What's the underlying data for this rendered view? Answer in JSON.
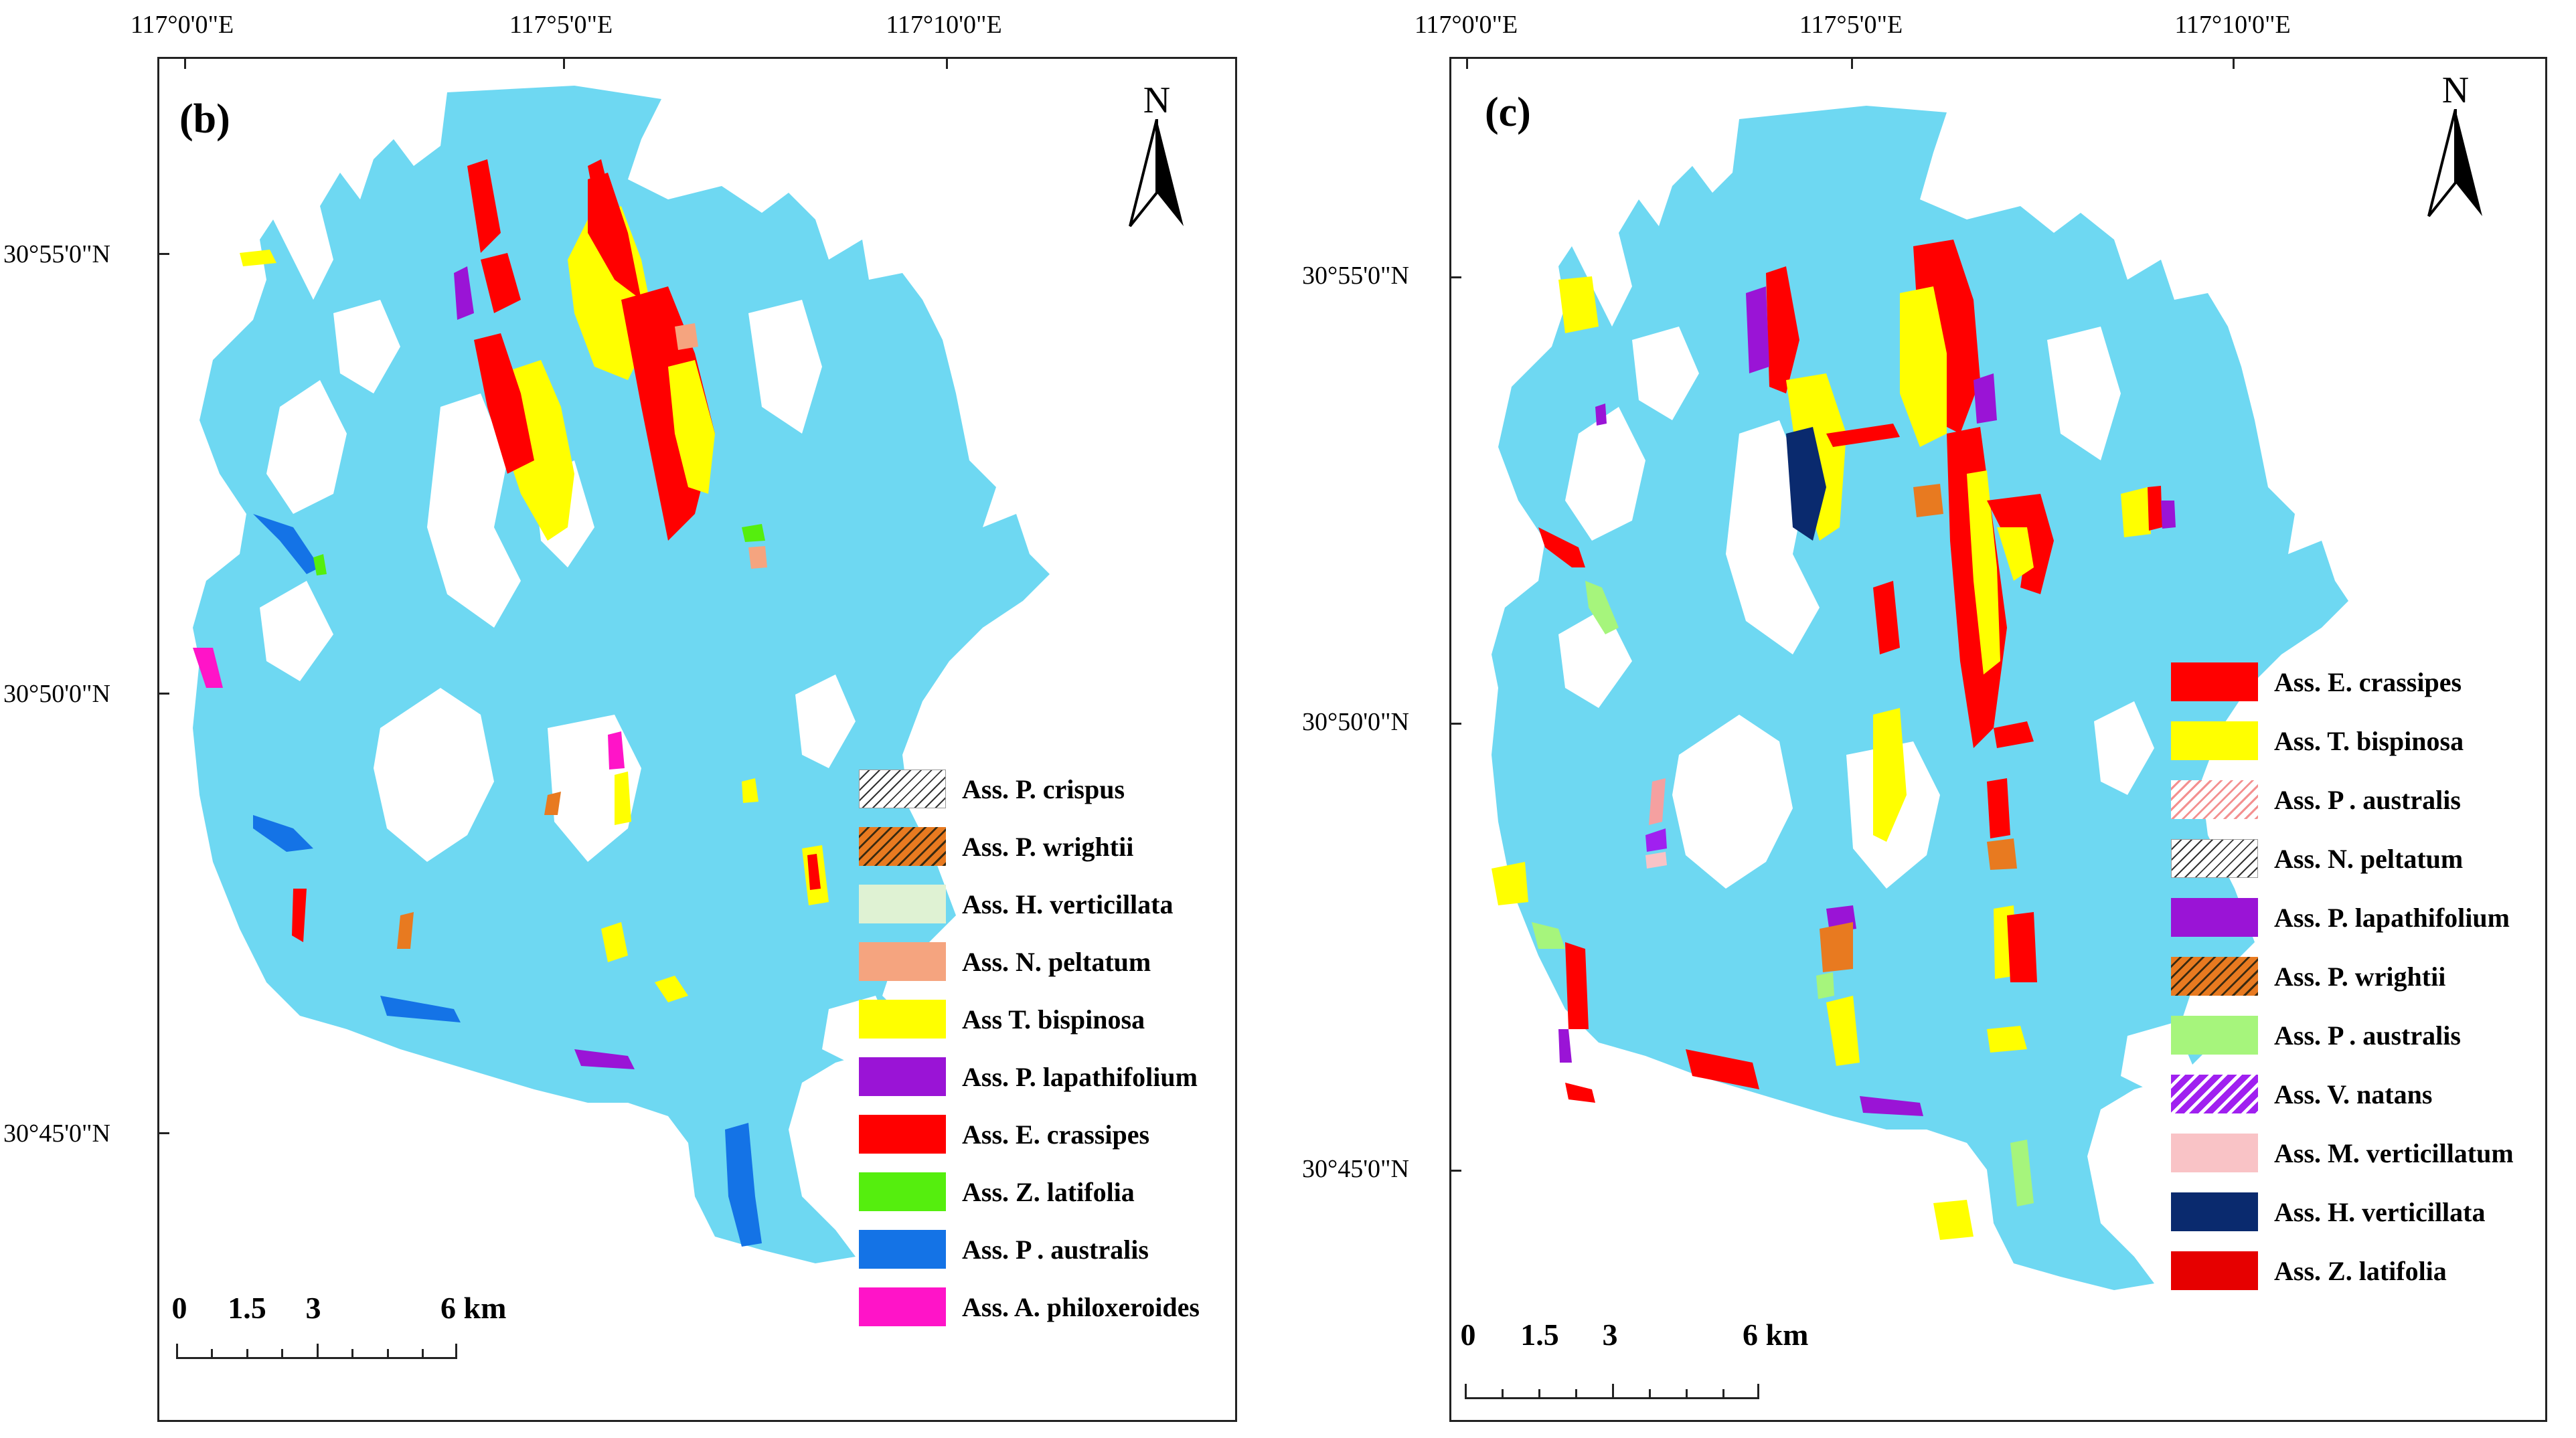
{
  "colors": {
    "water": "#6ed8f2",
    "land": "#ffffff"
  },
  "panels": [
    {
      "label": "(b)",
      "top_coords": [
        "117°0'0\"E",
        "117°5'0\"E",
        "117°10'0\"E"
      ],
      "left_coords": [
        "30°55'0\"N",
        "30°50'0\"N",
        "30°45'0\"N"
      ],
      "north": "N",
      "scale": {
        "ticks": [
          "0",
          "1.5",
          "3",
          "6 km"
        ]
      },
      "legend": [
        {
          "label": "Ass. P. crispus",
          "color": "#ffffff",
          "pattern": "hatch-black"
        },
        {
          "label": "Ass. P. wrightii",
          "color": "#e87a20",
          "pattern": "hatch-orange"
        },
        {
          "label": "Ass. H. verticillata",
          "color": "#dff2d3",
          "pattern": "solid"
        },
        {
          "label": "Ass. N. peltatum",
          "color": "#f5a47f",
          "pattern": "solid"
        },
        {
          "label": "Ass T. bispinosa",
          "color": "#ffff00",
          "pattern": "solid"
        },
        {
          "label": "Ass. P. lapathifolium",
          "color": "#9a14d6",
          "pattern": "solid"
        },
        {
          "label": "Ass. E. crassipes",
          "color": "#ff0000",
          "pattern": "solid"
        },
        {
          "label": "Ass. Z. latifolia",
          "color": "#55ee0e",
          "pattern": "solid"
        },
        {
          "label": "Ass. P . australis",
          "color": "#1473e6",
          "pattern": "solid"
        },
        {
          "label": "Ass. A.  philoxeroides",
          "color": "#ff14c8",
          "pattern": "solid"
        }
      ]
    },
    {
      "label": "(c)",
      "top_coords": [
        "117°0'0\"E",
        "117°5'0\"E",
        "117°10'0\"E"
      ],
      "left_coords": [
        "30°55'0\"N",
        "30°50'0\"N",
        "30°45'0\"N"
      ],
      "north": "N",
      "scale": {
        "ticks": [
          "0",
          "1.5",
          "3",
          "6 km"
        ]
      },
      "legend": [
        {
          "label": "Ass. E. crassipes",
          "color": "#ff0000",
          "pattern": "solid"
        },
        {
          "label": "Ass. T. bispinosa",
          "color": "#ffff00",
          "pattern": "solid"
        },
        {
          "label": "Ass. P . australis",
          "color": "#f5a0a0",
          "pattern": "hatch-pink"
        },
        {
          "label": "Ass. N. peltatum",
          "color": "#ffffff",
          "pattern": "hatch-black"
        },
        {
          "label": "Ass. P. lapathifolium",
          "color": "#9a14d6",
          "pattern": "solid"
        },
        {
          "label": "Ass. P. wrightii",
          "color": "#e87a20",
          "pattern": "hatch-orange"
        },
        {
          "label": "Ass. P . australis",
          "color": "#a6f57c",
          "pattern": "solid"
        },
        {
          "label": "Ass. V. natans",
          "color": "#a020f0",
          "pattern": "hatch-purple"
        },
        {
          "label": "Ass. M. verticillatum",
          "color": "#f9c3c6",
          "pattern": "solid"
        },
        {
          "label": "Ass. H. verticillata",
          "color": "#0a2a6e",
          "pattern": "solid"
        },
        {
          "label": "Ass. Z. latifolia",
          "color": "#e60000",
          "pattern": "solid"
        }
      ]
    }
  ]
}
